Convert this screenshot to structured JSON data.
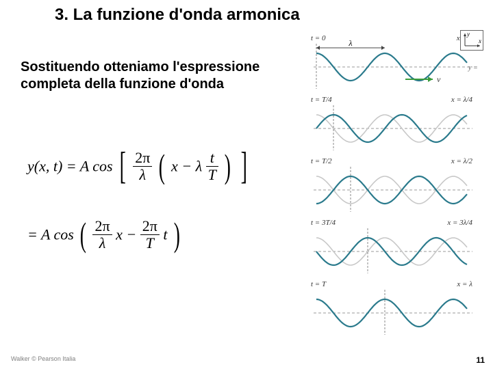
{
  "title": "3. La funzione d'onda armonica",
  "body_text": "Sostituendo otteniamo l'espressione completa della funzione d'onda",
  "equations": {
    "eq1_lhs": "y(x, t) = A cos",
    "eq1_num1": "2π",
    "eq1_den1": "λ",
    "eq1_inner1": "x − λ",
    "eq1_num2": "t",
    "eq1_den2": "T",
    "eq2_pre": "= A cos",
    "eq2_num1": "2π",
    "eq2_den1": "λ",
    "eq2_mid": "x − ",
    "eq2_num2": "2π",
    "eq2_den2": "T",
    "eq2_post": "t"
  },
  "figure": {
    "panels": [
      {
        "t_label": "t = 0",
        "x_label": "x = 0",
        "phase": 0.0,
        "show_lambda": true,
        "show_v": true,
        "show_y0": true,
        "show_frame": true
      },
      {
        "t_label": "t = T/4",
        "x_label": "x = λ/4",
        "phase": 0.25,
        "show_lambda": false,
        "show_v": false,
        "show_y0": false,
        "show_frame": false
      },
      {
        "t_label": "t = T/2",
        "x_label": "x = λ/2",
        "phase": 0.5,
        "show_lambda": false,
        "show_v": false,
        "show_y0": false,
        "show_frame": false
      },
      {
        "t_label": "t = 3T/4",
        "x_label": "x = 3λ/4",
        "phase": 0.75,
        "show_lambda": false,
        "show_v": false,
        "show_y0": false,
        "show_frame": false
      },
      {
        "t_label": "t = T",
        "x_label": "x = λ",
        "phase": 1.0,
        "show_lambda": false,
        "show_v": false,
        "show_y0": false,
        "show_frame": false
      }
    ],
    "wave_cycles": 2.2,
    "wave_amplitude": 20,
    "wave_width": 220,
    "wave_midline": 48,
    "colors": {
      "ghost_wave": "#c8c8c8",
      "live_wave": "#2a7a8c",
      "axis": "#888888",
      "dashed": "#999999",
      "marker_line": "#888888",
      "v_arrow": "#3c9c3c"
    }
  },
  "copyright": "Walker © Pearson Italia",
  "page_number": "11"
}
